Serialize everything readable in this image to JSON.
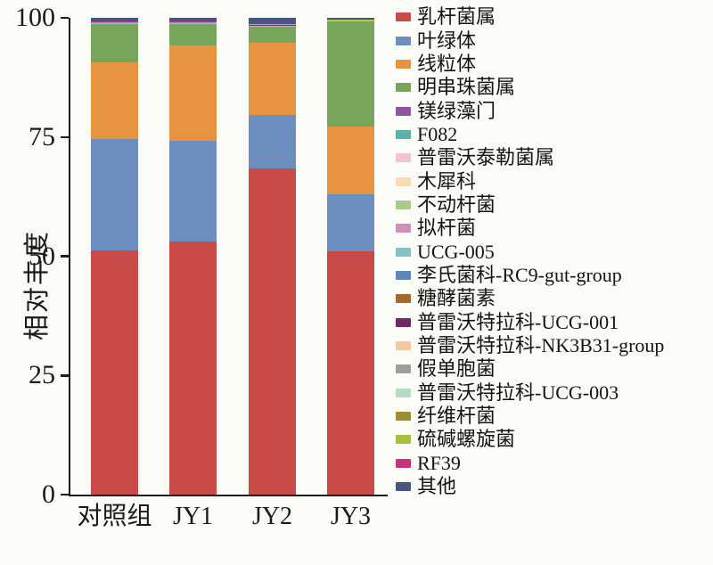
{
  "chart_data": {
    "type": "bar",
    "stacked": true,
    "title": "",
    "xlabel": "",
    "ylabel": "相对丰度",
    "ylim": [
      0,
      100
    ],
    "yticks": [
      0,
      25,
      50,
      75,
      100
    ],
    "grid": false,
    "legend_position": "right",
    "categories": [
      "对照组",
      "JY1",
      "JY2",
      "JY3"
    ],
    "series": [
      {
        "name": "乳杆菌属",
        "color": "#c94b47",
        "values": [
          51.1,
          53.0,
          68.3,
          51.0
        ]
      },
      {
        "name": "叶绿体",
        "color": "#6d8fbf",
        "values": [
          23.5,
          21.1,
          11.3,
          12.0
        ]
      },
      {
        "name": "线粒体",
        "color": "#e79440",
        "values": [
          16.0,
          20.0,
          15.2,
          14.2
        ]
      },
      {
        "name": "明串珠菌属",
        "color": "#76a55b",
        "values": [
          7.9,
          4.4,
          3.2,
          22.1
        ]
      },
      {
        "name": "镁绿藻门",
        "color": "#8f55a2",
        "values": [
          0.04,
          0.04,
          0.04,
          0.02
        ]
      },
      {
        "name": "F082",
        "color": "#59b1a9",
        "values": [
          0.04,
          0.04,
          0.04,
          0.02
        ]
      },
      {
        "name": "普雷沃泰勒菌属",
        "color": "#f2c3d2",
        "values": [
          0.04,
          0.04,
          0.04,
          0.02
        ]
      },
      {
        "name": "木犀科",
        "color": "#f8dcb2",
        "values": [
          0.04,
          0.04,
          0.04,
          0.02
        ]
      },
      {
        "name": "不动杆菌",
        "color": "#a9cb8e",
        "values": [
          0.04,
          0.04,
          0.04,
          0.02
        ]
      },
      {
        "name": "拟杆菌",
        "color": "#cf90bb",
        "values": [
          0.04,
          0.04,
          0.04,
          0.02
        ]
      },
      {
        "name": "UCG-005",
        "color": "#84c3c0",
        "values": [
          0.04,
          0.04,
          0.04,
          0.02
        ]
      },
      {
        "name": "李氏菌科-RC9-gut-group",
        "color": "#5a88bd",
        "values": [
          0.04,
          0.04,
          0.04,
          0.02
        ]
      },
      {
        "name": "糖酵菌素",
        "color": "#a3682c",
        "values": [
          0.04,
          0.04,
          0.04,
          0.02
        ]
      },
      {
        "name": "普雷沃特拉科-UCG-001",
        "color": "#702a67",
        "values": [
          0.04,
          0.04,
          0.04,
          0.02
        ]
      },
      {
        "name": "普雷沃特拉科-NK3B31-group",
        "color": "#f4c79e",
        "values": [
          0.04,
          0.04,
          0.04,
          0.02
        ]
      },
      {
        "name": "假单胞菌",
        "color": "#9e9e9e",
        "values": [
          0.04,
          0.04,
          0.04,
          0.02
        ]
      },
      {
        "name": "普雷沃特拉科-UCG-003",
        "color": "#b4dcbe",
        "values": [
          0.04,
          0.04,
          0.04,
          0.02
        ]
      },
      {
        "name": "纤维杆菌",
        "color": "#9c8d2f",
        "values": [
          0.04,
          0.04,
          0.04,
          0.02
        ]
      },
      {
        "name": "硫碱螺旋菌",
        "color": "#a9bf3c",
        "values": [
          0.04,
          0.04,
          0.04,
          0.02
        ]
      },
      {
        "name": "RF39",
        "color": "#c23578",
        "values": [
          0.04,
          0.04,
          0.04,
          0.02
        ]
      },
      {
        "name": "其他",
        "color": "#46567e",
        "values": [
          0.8,
          0.8,
          1.3,
          0.4
        ]
      }
    ]
  }
}
